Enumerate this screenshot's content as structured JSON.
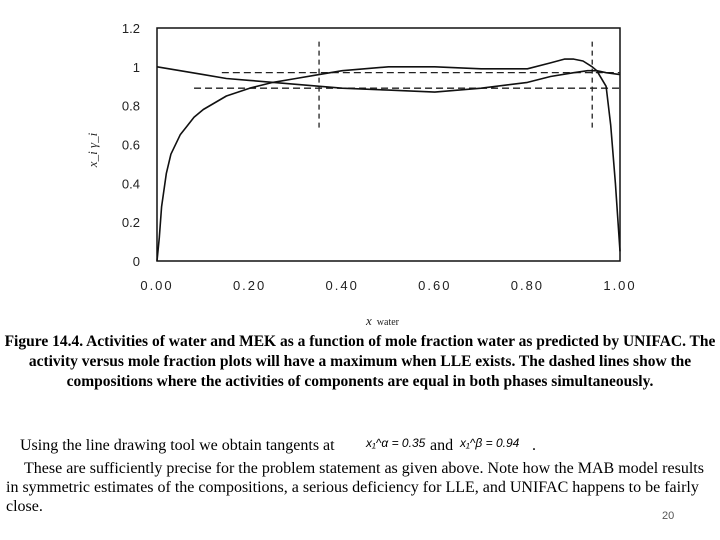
{
  "chart_data": {
    "type": "line",
    "xlabel_main": "x",
    "xlabel_sub": "water",
    "ylabel": "x_i γ_i",
    "xlim": [
      0,
      1
    ],
    "ylim": [
      0,
      1.2
    ],
    "xticks": [
      "0.00",
      "0.20",
      "0.40",
      "0.60",
      "0.80",
      "1.00"
    ],
    "yticks": [
      "0",
      "0.2",
      "0.4",
      "0.6",
      "0.8",
      "1",
      "1.2"
    ],
    "series": [
      {
        "role": "water activity",
        "x": [
          0,
          0.005,
          0.01,
          0.02,
          0.03,
          0.05,
          0.08,
          0.1,
          0.15,
          0.2,
          0.25,
          0.3,
          0.35,
          0.4,
          0.5,
          0.6,
          0.7,
          0.8,
          0.85,
          0.88,
          0.9,
          0.92,
          0.94,
          0.95,
          0.97,
          0.98,
          0.99,
          1.0
        ],
        "y": [
          0,
          0.12,
          0.28,
          0.45,
          0.55,
          0.65,
          0.74,
          0.78,
          0.85,
          0.89,
          0.92,
          0.94,
          0.96,
          0.98,
          1.0,
          1.0,
          0.99,
          0.99,
          1.02,
          1.04,
          1.04,
          1.03,
          1.0,
          0.98,
          0.9,
          0.7,
          0.4,
          0.05
        ]
      },
      {
        "role": "MEK activity",
        "x": [
          0,
          0.05,
          0.1,
          0.15,
          0.2,
          0.3,
          0.4,
          0.5,
          0.6,
          0.7,
          0.8,
          0.85,
          0.9,
          0.93,
          0.95,
          0.97,
          1.0
        ],
        "y": [
          1.0,
          0.98,
          0.96,
          0.94,
          0.93,
          0.91,
          0.89,
          0.88,
          0.87,
          0.89,
          0.92,
          0.95,
          0.97,
          0.98,
          0.98,
          0.97,
          0.96
        ]
      }
    ],
    "dashed_lines": {
      "vertical_x": [
        0.35,
        0.94
      ],
      "horizontal_y": [
        0.89,
        0.97
      ]
    }
  },
  "caption": "Figure 14.4. Activities of water and MEK as a function of mole fraction water as predicted by UNIFAC. The activity versus mole fraction plots will have a maximum when LLE exists. The dashed lines show the compositions where the activities of components are equal in both phases simultaneously.",
  "body": {
    "line1_text": "Using the line drawing tool we obtain tangents at",
    "tangent_alpha": "x₁^α = 0.35",
    "and_word": "and",
    "tangent_beta": "x₁^β = 0.94",
    "period": ".",
    "paragraph": "These are sufficiently precise for the problem statement as given above. Note how the MAB model results in symmetric estimates of the compositions, a serious deficiency for LLE, and UNIFAC happens to be fairly close."
  },
  "page_number": "20"
}
